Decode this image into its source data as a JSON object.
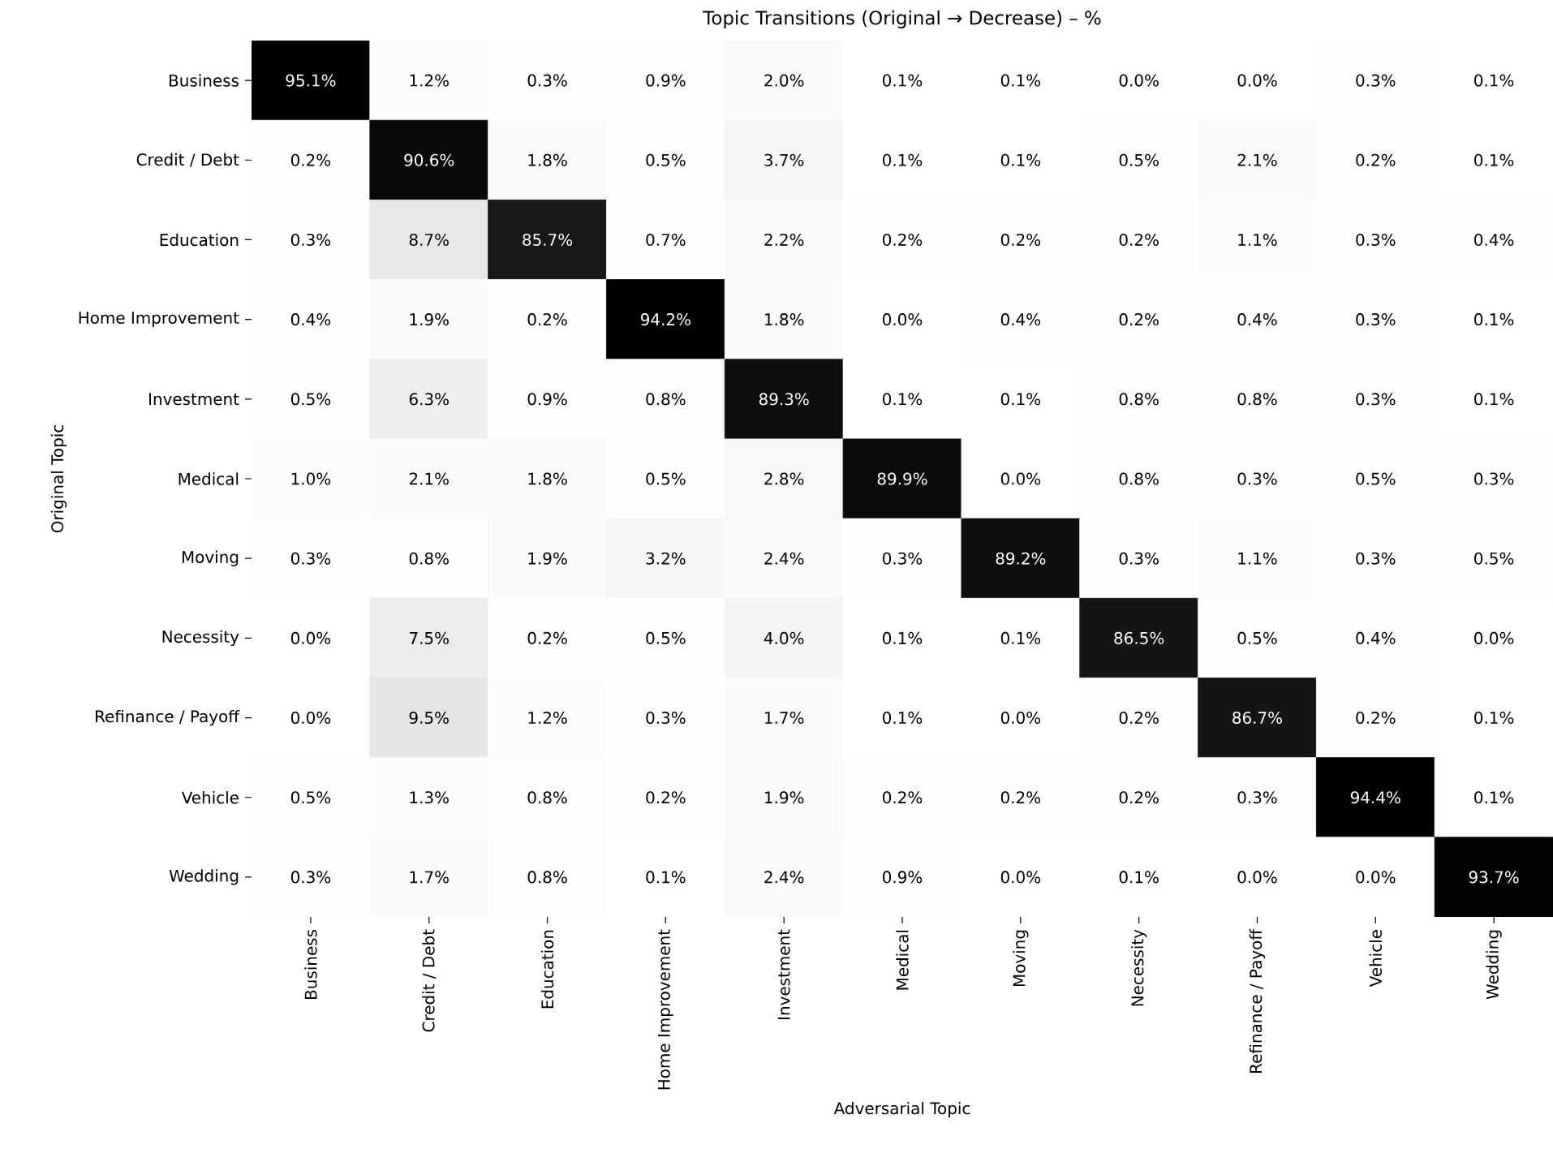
{
  "chart_data": {
    "type": "heatmap",
    "title": "Topic Transitions (Original → Decrease) – %",
    "xlabel": "Adversarial Topic",
    "ylabel": "Original Topic",
    "categories": [
      "Business",
      "Credit / Debt",
      "Education",
      "Home Improvement",
      "Investment",
      "Medical",
      "Moving",
      "Necessity",
      "Refinance / Payoff",
      "Vehicle",
      "Wedding"
    ],
    "y_categories": [
      "Business",
      "Credit / Debt",
      "Education",
      "Home Improvement",
      "Investment",
      "Medical",
      "Moving",
      "Necessity",
      "Refinance / Payoff",
      "Vehicle",
      "Wedding"
    ],
    "cells": [
      [
        95.1,
        1.2,
        0.3,
        0.9,
        2.0,
        0.1,
        0.1,
        0.0,
        0.0,
        0.3,
        0.1
      ],
      [
        0.2,
        90.6,
        1.8,
        0.5,
        3.7,
        0.1,
        0.1,
        0.5,
        2.1,
        0.2,
        0.1
      ],
      [
        0.3,
        8.7,
        85.7,
        0.7,
        2.2,
        0.2,
        0.2,
        0.2,
        1.1,
        0.3,
        0.4
      ],
      [
        0.4,
        1.9,
        0.2,
        94.2,
        1.8,
        0.0,
        0.4,
        0.2,
        0.4,
        0.3,
        0.1
      ],
      [
        0.5,
        6.3,
        0.9,
        0.8,
        89.3,
        0.1,
        0.1,
        0.8,
        0.8,
        0.3,
        0.1
      ],
      [
        1.0,
        2.1,
        1.8,
        0.5,
        2.8,
        89.9,
        0.0,
        0.8,
        0.3,
        0.5,
        0.3
      ],
      [
        0.3,
        0.8,
        1.9,
        3.2,
        2.4,
        0.3,
        89.2,
        0.3,
        1.1,
        0.3,
        0.5
      ],
      [
        0.0,
        7.5,
        0.2,
        0.5,
        4.0,
        0.1,
        0.1,
        86.5,
        0.5,
        0.4,
        0.0
      ],
      [
        0.0,
        9.5,
        1.2,
        0.3,
        1.7,
        0.1,
        0.0,
        0.2,
        86.7,
        0.2,
        0.1
      ],
      [
        0.5,
        1.3,
        0.8,
        0.2,
        1.9,
        0.2,
        0.2,
        0.2,
        0.3,
        94.4,
        0.1
      ],
      [
        0.3,
        1.7,
        0.8,
        0.1,
        2.4,
        0.9,
        0.0,
        0.1,
        0.0,
        0.0,
        93.7
      ]
    ],
    "cell_labels": [
      [
        "95.1%",
        "1.2%",
        "0.3%",
        "0.9%",
        "2.0%",
        "0.1%",
        "0.1%",
        "0.0%",
        "0.0%",
        "0.3%",
        "0.1%"
      ],
      [
        "0.2%",
        "90.6%",
        "1.8%",
        "0.5%",
        "3.7%",
        "0.1%",
        "0.1%",
        "0.5%",
        "2.1%",
        "0.2%",
        "0.1%"
      ],
      [
        "0.3%",
        "8.7%",
        "85.7%",
        "0.7%",
        "2.2%",
        "0.2%",
        "0.2%",
        "0.2%",
        "1.1%",
        "0.3%",
        "0.4%"
      ],
      [
        "0.4%",
        "1.9%",
        "0.2%",
        "94.2%",
        "1.8%",
        "0.0%",
        "0.4%",
        "0.2%",
        "0.4%",
        "0.3%",
        "0.1%"
      ],
      [
        "0.5%",
        "6.3%",
        "0.9%",
        "0.8%",
        "89.3%",
        "0.1%",
        "0.1%",
        "0.8%",
        "0.8%",
        "0.3%",
        "0.1%"
      ],
      [
        "1.0%",
        "2.1%",
        "1.8%",
        "0.5%",
        "2.8%",
        "89.9%",
        "0.0%",
        "0.8%",
        "0.3%",
        "0.5%",
        "0.3%"
      ],
      [
        "0.3%",
        "0.8%",
        "1.9%",
        "3.2%",
        "2.4%",
        "0.3%",
        "89.2%",
        "0.3%",
        "1.1%",
        "0.3%",
        "0.5%"
      ],
      [
        "0.0%",
        "7.5%",
        "0.2%",
        "0.5%",
        "4.0%",
        "0.1%",
        "0.1%",
        "86.5%",
        "0.5%",
        "0.4%",
        "0.0%"
      ],
      [
        "0.0%",
        "9.5%",
        "1.2%",
        "0.3%",
        "1.7%",
        "0.1%",
        "0.0%",
        "0.2%",
        "86.7%",
        "0.2%",
        "0.1%"
      ],
      [
        "0.5%",
        "1.3%",
        "0.8%",
        "0.2%",
        "1.9%",
        "0.2%",
        "0.2%",
        "0.2%",
        "0.3%",
        "94.4%",
        "0.1%"
      ],
      [
        "0.3%",
        "1.7%",
        "0.8%",
        "0.1%",
        "2.4%",
        "0.9%",
        "0.0%",
        "0.1%",
        "0.0%",
        "0.0%",
        "93.7%"
      ]
    ]
  }
}
